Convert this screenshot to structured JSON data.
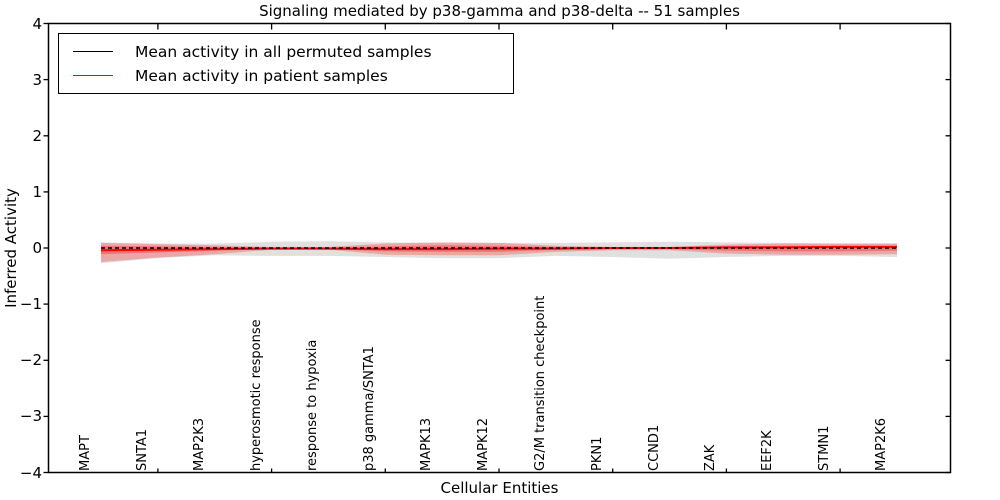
{
  "chart_data": {
    "type": "line",
    "title": "Signaling mediated by p38-gamma and p38-delta -- 51 samples",
    "xlabel": "Cellular Entities",
    "ylabel": "Inferred Activity",
    "ylim": [
      -4,
      4
    ],
    "grid": false,
    "yticks": [
      {
        "value": 4,
        "label": "4"
      },
      {
        "value": 3,
        "label": "3"
      },
      {
        "value": 2,
        "label": "2"
      },
      {
        "value": 1,
        "label": "1"
      },
      {
        "value": 0,
        "label": "0"
      },
      {
        "value": -1,
        "label": "−1"
      },
      {
        "value": -2,
        "label": "−2"
      },
      {
        "value": -3,
        "label": "−3"
      },
      {
        "value": -4,
        "label": "−4"
      }
    ],
    "categories": [
      "MAPT",
      "SNTA1",
      "MAP2K3",
      "hyperosmotic response",
      "response to hypoxia",
      "p38 gamma/SNTA1",
      "MAPK13",
      "MAPK12",
      "G2/M transition checkpoint",
      "PKN1",
      "CCND1",
      "ZAK",
      "EEF2K",
      "STMN1",
      "MAP2K6"
    ],
    "xtick_indices": [
      1,
      3,
      5,
      7,
      9,
      11,
      13
    ],
    "series": [
      {
        "name": "Mean activity in all permuted samples",
        "color": "#000000",
        "style": "dashed",
        "values": [
          0,
          0,
          0,
          0,
          0,
          0,
          0,
          0,
          0,
          0,
          0,
          0,
          0,
          0,
          0
        ]
      },
      {
        "name": "Mean activity in patient samples",
        "color": "#ff0000",
        "style": "solid",
        "values": [
          -0.04,
          -0.03,
          -0.02,
          -0.01,
          -0.01,
          -0.02,
          -0.02,
          -0.01,
          -0.01,
          0,
          0,
          0.01,
          0.01,
          0.02,
          0.02
        ]
      }
    ],
    "bands": [
      {
        "name": "permuted-samples-confidence-band",
        "color": "#999999",
        "opacity": 0.3,
        "upper": [
          0.1,
          0.08,
          0.08,
          0.11,
          0.12,
          0.1,
          0.09,
          0.09,
          0.09,
          0.1,
          0.11,
          0.1,
          0.09,
          0.08,
          0.08
        ],
        "lower": [
          -0.27,
          -0.18,
          -0.13,
          -0.14,
          -0.14,
          -0.16,
          -0.18,
          -0.18,
          -0.14,
          -0.16,
          -0.19,
          -0.16,
          -0.14,
          -0.14,
          -0.16
        ]
      },
      {
        "name": "patient-samples-outer-band",
        "color": "#ff0000",
        "opacity": 0.25,
        "upper": [
          0.09,
          0.07,
          0.05,
          0.02,
          0.02,
          0.08,
          0.1,
          0.09,
          0.04,
          0.02,
          0.02,
          0.06,
          0.08,
          0.08,
          0.08
        ],
        "lower": [
          -0.25,
          -0.17,
          -0.11,
          -0.03,
          -0.03,
          -0.12,
          -0.13,
          -0.13,
          -0.07,
          -0.04,
          -0.04,
          -0.1,
          -0.12,
          -0.12,
          -0.11
        ]
      },
      {
        "name": "patient-samples-inner-band",
        "color": "#ff0000",
        "opacity": 0.3,
        "upper": [
          0.04,
          0.03,
          0.02,
          0.01,
          0.01,
          0.03,
          0.05,
          0.04,
          0.02,
          0.01,
          0.01,
          0.03,
          0.04,
          0.04,
          0.04
        ],
        "lower": [
          -0.11,
          -0.08,
          -0.05,
          -0.02,
          -0.02,
          -0.06,
          -0.07,
          -0.07,
          -0.03,
          -0.02,
          -0.02,
          -0.05,
          -0.06,
          -0.06,
          -0.05
        ]
      }
    ],
    "legend": {
      "position": "upper-left",
      "entries": [
        "Mean activity in all permuted samples",
        "Mean activity in patient samples"
      ]
    }
  }
}
